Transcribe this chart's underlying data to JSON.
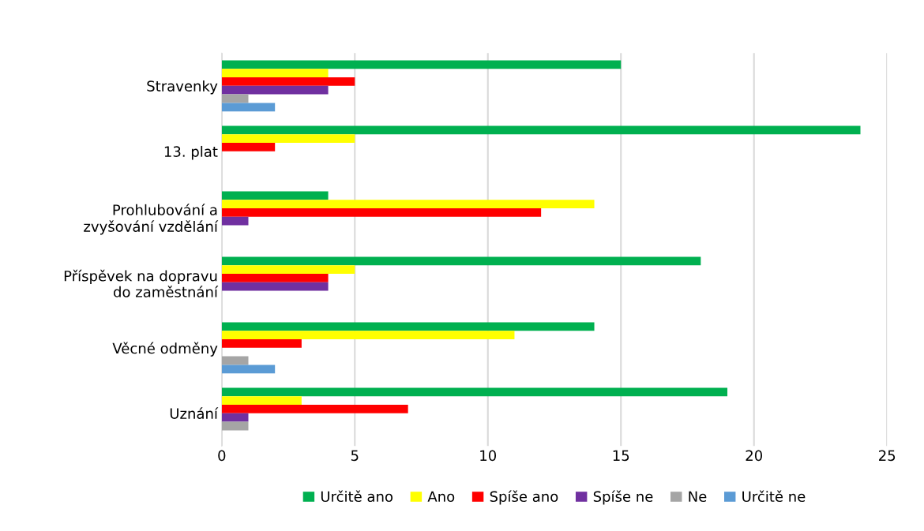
{
  "chart_data": {
    "type": "bar",
    "orientation": "horizontal",
    "categories": [
      "Stravenky",
      "13. plat",
      "Prohlubování a\nzvyšování vzdělání",
      "Příspěvek na dopravu\ndo zaměstnání",
      "Věcné odměny",
      "Uznání"
    ],
    "series": [
      {
        "name": "Určitě ano",
        "color": "#00b050",
        "values": [
          15,
          24,
          4,
          18,
          14,
          19
        ]
      },
      {
        "name": "Ano",
        "color": "#ffff00",
        "values": [
          4,
          5,
          14,
          5,
          11,
          3
        ]
      },
      {
        "name": "Spíše ano",
        "color": "#ff0000",
        "values": [
          5,
          2,
          12,
          4,
          3,
          7
        ]
      },
      {
        "name": "Spíše ne",
        "color": "#7030a0",
        "values": [
          4,
          0,
          1,
          4,
          0,
          1
        ]
      },
      {
        "name": "Ne",
        "color": "#a5a5a5",
        "values": [
          1,
          0,
          0,
          0,
          1,
          1
        ]
      },
      {
        "name": "Určitě ne",
        "color": "#5b9bd5",
        "values": [
          2,
          0,
          0,
          0,
          2,
          0
        ]
      }
    ],
    "xlim": [
      0,
      25
    ],
    "xticks": [
      0,
      5,
      10,
      15,
      20,
      25
    ],
    "grid": "x",
    "legend": "bottom"
  }
}
